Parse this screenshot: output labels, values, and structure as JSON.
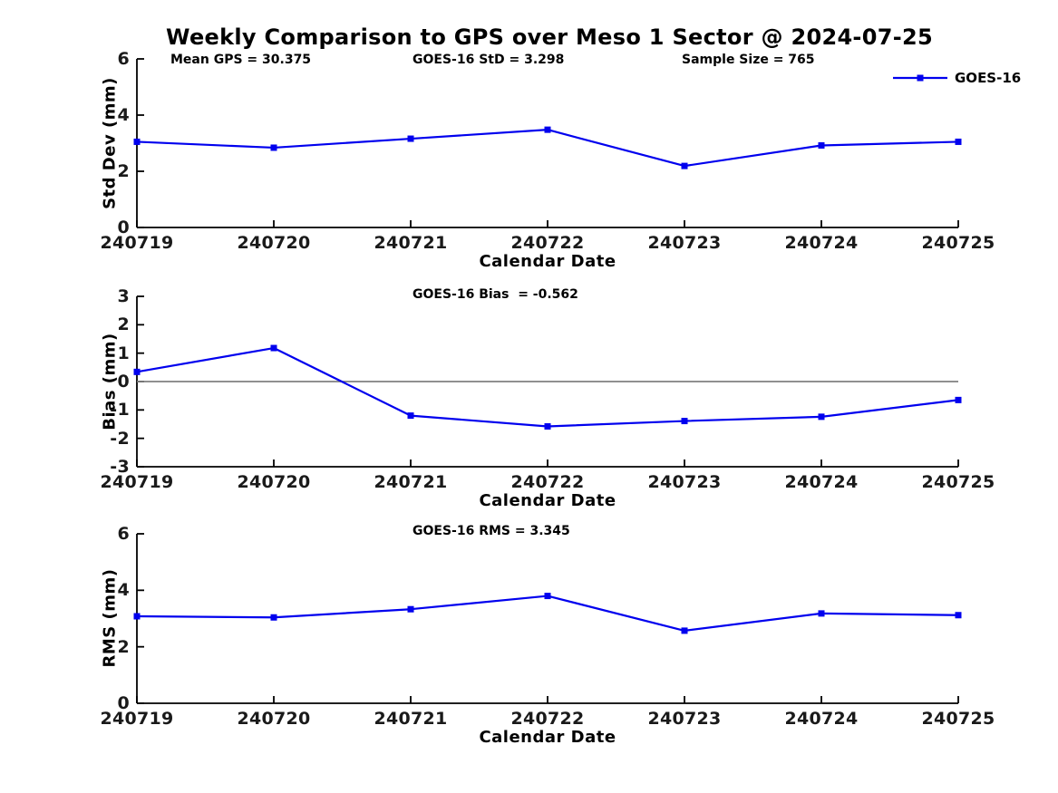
{
  "figure": {
    "title": "Weekly Comparison to GPS over Meso 1 Sector @ 2024-07-25"
  },
  "colors": {
    "series_blue": "#0000ee",
    "axis_black": "#000000",
    "zero_line_gray": "#808080"
  },
  "legend": {
    "label": "GOES-16"
  },
  "chart_data": [
    {
      "type": "line",
      "name": "std-dev",
      "annotations": [
        "Mean GPS = 30.375",
        "GOES-16 StD = 3.298",
        "Sample Size = 765"
      ],
      "categories": [
        "240719",
        "240720",
        "240721",
        "240722",
        "240723",
        "240724",
        "240725"
      ],
      "series": [
        {
          "name": "GOES-16",
          "marker": "square",
          "values": [
            3.05,
            2.84,
            3.16,
            3.48,
            2.19,
            2.92,
            3.05
          ]
        }
      ],
      "xlabel": "Calendar Date",
      "ylabel": "Std Dev (mm)",
      "ylim": [
        0,
        6
      ],
      "yticks": [
        0,
        2,
        4,
        6
      ],
      "zero_line": false,
      "grid": false,
      "legend_position": "top-right"
    },
    {
      "type": "line",
      "name": "bias",
      "title": "GOES-16 Bias  = -0.562",
      "categories": [
        "240719",
        "240720",
        "240721",
        "240722",
        "240723",
        "240724",
        "240725"
      ],
      "series": [
        {
          "name": "GOES-16",
          "marker": "square",
          "values": [
            0.34,
            1.18,
            -1.2,
            -1.58,
            -1.39,
            -1.24,
            -0.65
          ]
        }
      ],
      "xlabel": "Calendar Date",
      "ylabel": "Bias (mm)",
      "ylim": [
        -3,
        3
      ],
      "yticks": [
        -3,
        -2,
        -1,
        0,
        1,
        2,
        3
      ],
      "zero_line": true,
      "grid": false,
      "legend_position": "none"
    },
    {
      "type": "line",
      "name": "rms",
      "title": "GOES-16 RMS = 3.345",
      "categories": [
        "240719",
        "240720",
        "240721",
        "240722",
        "240723",
        "240724",
        "240725"
      ],
      "series": [
        {
          "name": "GOES-16",
          "marker": "square",
          "values": [
            3.08,
            3.04,
            3.33,
            3.8,
            2.57,
            3.18,
            3.12
          ]
        }
      ],
      "xlabel": "Calendar Date",
      "ylabel": "RMS (mm)",
      "ylim": [
        0,
        6
      ],
      "yticks": [
        0,
        2,
        4,
        6
      ],
      "zero_line": false,
      "grid": false,
      "legend_position": "none"
    }
  ]
}
